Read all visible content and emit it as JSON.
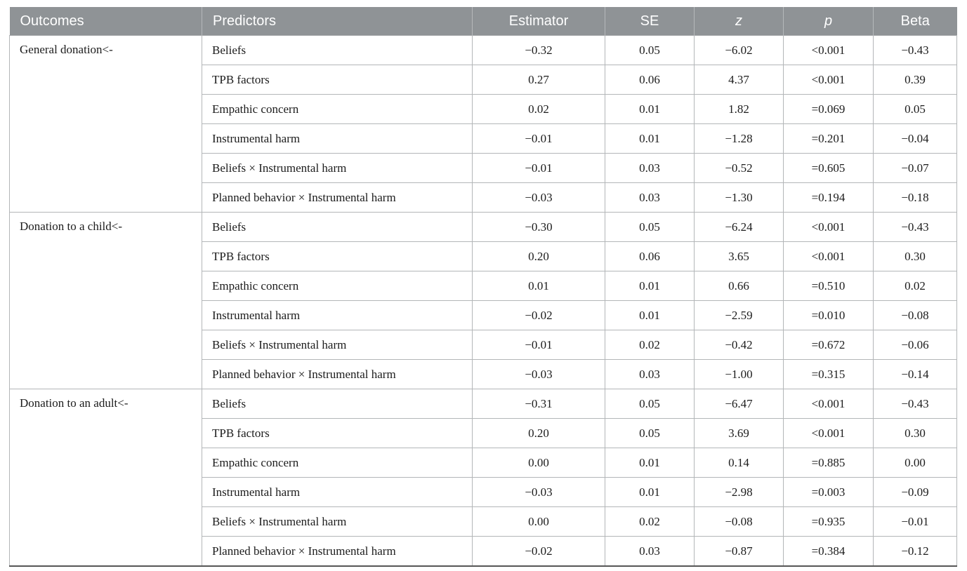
{
  "header": {
    "columns": {
      "outcomes": "Outcomes",
      "predictors": "Predictors",
      "estimator": "Estimator",
      "se": "SE",
      "z": "z",
      "p": "p",
      "beta": "Beta"
    }
  },
  "colors": {
    "header_bg": "#8f9396",
    "header_text": "#ffffff",
    "grid_border": "#b3b6b8",
    "bottom_border": "#565656",
    "body_text": "#1c1c1c"
  },
  "sections": [
    {
      "outcome": "General donation<-",
      "rows": [
        {
          "predictor": "Beliefs",
          "estimator": "−0.32",
          "se": "0.05",
          "z": "−6.02",
          "p": "<0.001",
          "beta": "−0.43"
        },
        {
          "predictor": "TPB factors",
          "estimator": "0.27",
          "se": "0.06",
          "z": "4.37",
          "p": "<0.001",
          "beta": "0.39"
        },
        {
          "predictor": "Empathic concern",
          "estimator": "0.02",
          "se": "0.01",
          "z": "1.82",
          "p": "=0.069",
          "beta": "0.05"
        },
        {
          "predictor": "Instrumental harm",
          "estimator": "−0.01",
          "se": "0.01",
          "z": "−1.28",
          "p": "=0.201",
          "beta": "−0.04"
        },
        {
          "predictor": "Beliefs × Instrumental harm",
          "estimator": "−0.01",
          "se": "0.03",
          "z": "−0.52",
          "p": "=0.605",
          "beta": "−0.07"
        },
        {
          "predictor": "Planned behavior × Instrumental harm",
          "estimator": "−0.03",
          "se": "0.03",
          "z": "−1.30",
          "p": "=0.194",
          "beta": "−0.18"
        }
      ]
    },
    {
      "outcome": "Donation to a child<-",
      "rows": [
        {
          "predictor": "Beliefs",
          "estimator": "−0.30",
          "se": "0.05",
          "z": "−6.24",
          "p": "<0.001",
          "beta": "−0.43"
        },
        {
          "predictor": "TPB factors",
          "estimator": "0.20",
          "se": "0.06",
          "z": "3.65",
          "p": "<0.001",
          "beta": "0.30"
        },
        {
          "predictor": "Empathic concern",
          "estimator": "0.01",
          "se": "0.01",
          "z": "0.66",
          "p": "=0.510",
          "beta": "0.02"
        },
        {
          "predictor": "Instrumental harm",
          "estimator": "−0.02",
          "se": "0.01",
          "z": "−2.59",
          "p": "=0.010",
          "beta": "−0.08"
        },
        {
          "predictor": "Beliefs × Instrumental harm",
          "estimator": "−0.01",
          "se": "0.02",
          "z": "−0.42",
          "p": "=0.672",
          "beta": "−0.06"
        },
        {
          "predictor": "Planned behavior × Instrumental harm",
          "estimator": "−0.03",
          "se": "0.03",
          "z": "−1.00",
          "p": "=0.315",
          "beta": "−0.14"
        }
      ]
    },
    {
      "outcome": "Donation to an adult<-",
      "rows": [
        {
          "predictor": "Beliefs",
          "estimator": "−0.31",
          "se": "0.05",
          "z": "−6.47",
          "p": "<0.001",
          "beta": "−0.43"
        },
        {
          "predictor": "TPB factors",
          "estimator": "0.20",
          "se": "0.05",
          "z": "3.69",
          "p": "<0.001",
          "beta": "0.30"
        },
        {
          "predictor": "Empathic concern",
          "estimator": "0.00",
          "se": "0.01",
          "z": "0.14",
          "p": "=0.885",
          "beta": "0.00"
        },
        {
          "predictor": "Instrumental harm",
          "estimator": "−0.03",
          "se": "0.01",
          "z": "−2.98",
          "p": "=0.003",
          "beta": "−0.09"
        },
        {
          "predictor": "Beliefs × Instrumental harm",
          "estimator": "0.00",
          "se": "0.02",
          "z": "−0.08",
          "p": "=0.935",
          "beta": "−0.01"
        },
        {
          "predictor": "Planned behavior × Instrumental harm",
          "estimator": "−0.02",
          "se": "0.03",
          "z": "−0.87",
          "p": "=0.384",
          "beta": "−0.12"
        }
      ]
    }
  ]
}
